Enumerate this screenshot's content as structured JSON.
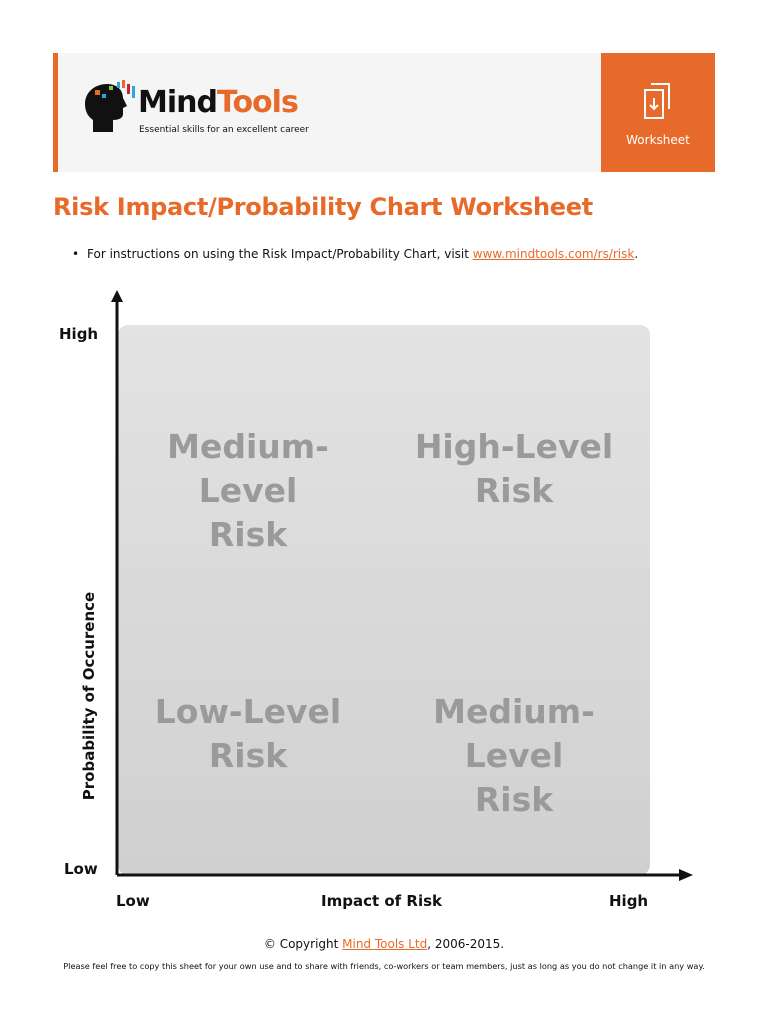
{
  "header": {
    "brand_mind": "Mind",
    "brand_tools": "Tools",
    "tagline": "Essential skills for an excellent career",
    "badge_label": "Worksheet",
    "accent_color": "#e86a2b"
  },
  "title": "Risk Impact/Probability Chart Worksheet",
  "instruction": {
    "bullet": "•",
    "text": "For instructions on using the Risk Impact/Probability Chart, visit ",
    "link": "www.mindtools.com/rs/risk",
    "end": "."
  },
  "chart_data": {
    "type": "quadrant",
    "xlabel": "Impact of Risk",
    "ylabel": "Probability of Occurence",
    "x_ticks": [
      "Low",
      "High"
    ],
    "y_ticks": [
      "Low",
      "High"
    ],
    "quadrants": [
      {
        "position": "top-left",
        "label_line1": "Medium-Level",
        "label_line2": "Risk"
      },
      {
        "position": "top-right",
        "label_line1": "High-Level",
        "label_line2": "Risk"
      },
      {
        "position": "bottom-left",
        "label_line1": "Low-Level",
        "label_line2": "Risk"
      },
      {
        "position": "bottom-right",
        "label_line1": "Medium-Level",
        "label_line2": "Risk"
      }
    ]
  },
  "footer": {
    "copyright_prefix": "© Copyright ",
    "copyright_link": "Mind Tools Ltd",
    "copyright_suffix": ", 2006-2015.",
    "disclaimer": "Please feel free to copy this sheet for your own use and to share with friends, co-workers or team members, just as long as you do not change it in any way."
  }
}
